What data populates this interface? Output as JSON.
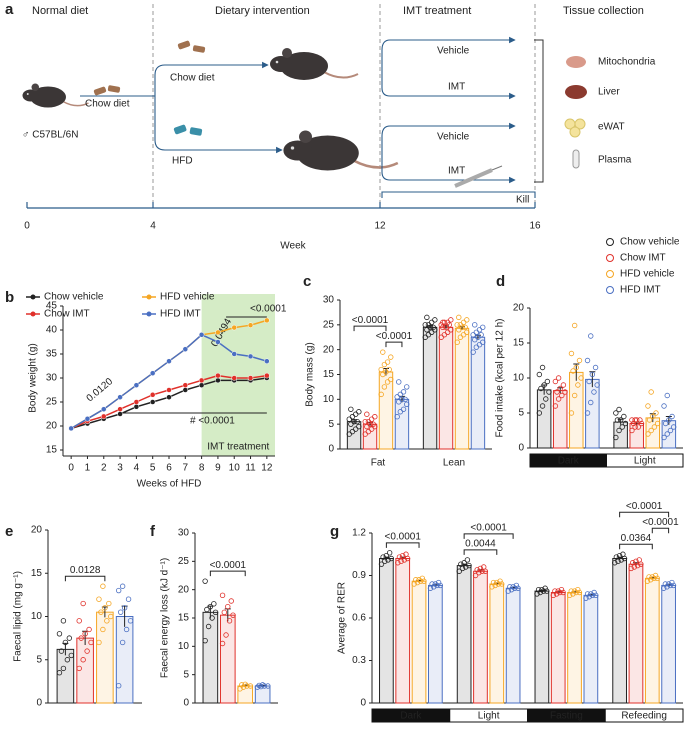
{
  "diagram": {
    "panel": "a",
    "headers": [
      "Normal diet",
      "Dietary intervention",
      "IMT treatment",
      "Tissue collection"
    ],
    "diets": [
      "Chow diet",
      "Chow diet",
      "HFD"
    ],
    "strain": "♂ C57BL/6N",
    "treatments": [
      "Vehicle",
      "IMT",
      "Vehicle",
      "IMT"
    ],
    "tissues": [
      "Mitochondria",
      "Liver",
      "eWAT",
      "Plasma"
    ],
    "kill": "Kill",
    "weeks": [
      "0",
      "4",
      "12",
      "16"
    ],
    "axis_label": "Week"
  },
  "chart_data": [
    {
      "panel": "b",
      "type": "line",
      "x_label": "Weeks of HFD",
      "y_label": "Body weight (g)",
      "x": [
        0,
        1,
        2,
        3,
        4,
        5,
        6,
        7,
        8,
        9,
        10,
        11,
        12
      ],
      "xlim": [
        -0.5,
        12.5
      ],
      "xticks": [
        0,
        1,
        2,
        3,
        4,
        5,
        6,
        7,
        8,
        9,
        10,
        11,
        12
      ],
      "ylim": [
        15,
        45
      ],
      "yticks": [
        15,
        20,
        25,
        30,
        35,
        40,
        45
      ],
      "shade_from": 8,
      "shade_label": "IMT treatment",
      "shade_color": "#d5ecc6",
      "annotations": [
        "0.0120",
        "# <0.0001",
        "0.0494",
        "<0.0001"
      ],
      "series": [
        {
          "name": "Chow vehicle",
          "color": "#222222",
          "values": [
            19.5,
            20.5,
            21.5,
            22.5,
            24,
            25,
            26,
            27.5,
            28.5,
            29.5,
            29.5,
            29.5,
            30
          ]
        },
        {
          "name": "Chow IMT",
          "color": "#e0302a",
          "values": [
            19.5,
            21,
            22,
            23.5,
            25,
            26.5,
            27.5,
            28.5,
            29.5,
            30.5,
            30,
            30,
            30.5
          ]
        },
        {
          "name": "HFD vehicle",
          "color": "#f5a623",
          "values": [
            19.5,
            21.5,
            23.5,
            26,
            28.5,
            31,
            33.5,
            36,
            39,
            39.5,
            40.5,
            41,
            42
          ]
        },
        {
          "name": "HFD IMT",
          "color": "#4a6fc2",
          "values": [
            19.5,
            21.5,
            23.5,
            26,
            28.5,
            31,
            33.5,
            36,
            39,
            37.5,
            35,
            34.5,
            33.5
          ]
        }
      ]
    },
    {
      "panel": "c",
      "type": "bar",
      "y_label": "Body mass (g)",
      "categories": [
        "Fat",
        "Lean"
      ],
      "ylim": [
        0,
        30
      ],
      "yticks": [
        0,
        5,
        10,
        15,
        20,
        25,
        30
      ],
      "series": [
        {
          "color": "#222222",
          "values": [
            5.5,
            24.5
          ],
          "errors": [
            0.4,
            0.3
          ],
          "points": [
            [
              3,
              3.5,
              4,
              4.5,
              5,
              5.5,
              5.5,
              6,
              6.5,
              7,
              7.5,
              8
            ],
            [
              22.5,
              23,
              23.5,
              24,
              24,
              24.5,
              24.5,
              25,
              25,
              25.5,
              26,
              26.5
            ]
          ]
        },
        {
          "color": "#e0302a",
          "values": [
            5,
            24.5
          ],
          "errors": [
            0.35,
            0.3
          ],
          "points": [
            [
              3,
              3.5,
              4,
              4.5,
              4.5,
              5,
              5,
              5.5,
              5.5,
              6,
              6.5,
              7
            ],
            [
              22.5,
              23,
              23.5,
              24,
              24.5,
              24.5,
              25,
              25,
              25.5,
              25.5,
              26,
              25.5
            ]
          ]
        },
        {
          "color": "#f5a623",
          "values": [
            15.5,
            24.3
          ],
          "errors": [
            0.7,
            0.35
          ],
          "points": [
            [
              11,
              12.5,
              13.5,
              14,
              15,
              15.5,
              16,
              16,
              17,
              17.5,
              18.5,
              19.5
            ],
            [
              21.5,
              22.5,
              23,
              23.5,
              24,
              24.5,
              24.5,
              25,
              25,
              25.5,
              26,
              26.5
            ]
          ]
        },
        {
          "color": "#4a6fc2",
          "values": [
            10,
            22.5
          ],
          "errors": [
            0.6,
            0.4
          ],
          "points": [
            [
              6.5,
              7.5,
              8,
              9,
              9.5,
              10,
              10,
              10.5,
              11,
              11.5,
              12.5,
              13.5
            ],
            [
              19.5,
              20.5,
              21,
              21.5,
              22,
              22.5,
              23,
              23,
              23.5,
              24,
              24.5,
              25
            ]
          ]
        }
      ],
      "brackets": [
        {
          "label": "<0.0001",
          "group": 0,
          "from": 2,
          "to": 3
        },
        {
          "label": "<0.0001",
          "group": 0,
          "from": 0,
          "to": 2
        }
      ]
    },
    {
      "panel": "d",
      "type": "bar",
      "y_label": "Food intake (kcal per 12 h)",
      "categories": [
        "Dark",
        "Light"
      ],
      "category_colors": [
        "#111111",
        "#ffffff"
      ],
      "ylim": [
        0,
        20
      ],
      "yticks": [
        0,
        5,
        10,
        15,
        20
      ],
      "series": [
        {
          "name": "Chow vehicle",
          "color": "#222222",
          "values": [
            8.3,
            3.7
          ],
          "errors": [
            0.7,
            0.4
          ],
          "points": [
            [
              5,
              6,
              7,
              8,
              8.5,
              9,
              9.5,
              10.5,
              11.5
            ],
            [
              1.5,
              2.5,
              3,
              3.5,
              4,
              4,
              4.5,
              5,
              5.5
            ]
          ]
        },
        {
          "name": "Chow IMT",
          "color": "#e0302a",
          "values": [
            8.2,
            3.5
          ],
          "errors": [
            0.4,
            0.2
          ],
          "points": [
            [
              6,
              7,
              7.5,
              8,
              8,
              8.5,
              9,
              9.5,
              10
            ],
            [
              2.5,
              3,
              3,
              3.5,
              3.5,
              4,
              4,
              4,
              4
            ]
          ]
        },
        {
          "name": "HFD vehicle",
          "color": "#f5a623",
          "values": [
            10.8,
            4.3
          ],
          "errors": [
            1.2,
            0.6
          ],
          "points": [
            [
              5,
              7.5,
              9,
              10,
              11,
              11.5,
              12.5,
              13.5,
              17.5
            ],
            [
              2,
              2.5,
              3,
              3.5,
              4,
              4.5,
              5,
              6,
              8
            ]
          ]
        },
        {
          "name": "HFD IMT",
          "color": "#4a6fc2",
          "values": [
            9.8,
            3.9
          ],
          "errors": [
            1.1,
            0.6
          ],
          "points": [
            [
              5,
              6.5,
              8,
              9,
              9.5,
              10.5,
              11.5,
              12.5,
              16
            ],
            [
              1.5,
              2,
              2.5,
              3,
              3.5,
              4,
              4.5,
              6,
              7.5
            ]
          ]
        }
      ]
    },
    {
      "panel": "e",
      "type": "bar",
      "y_label": "Faecal lipid (mg g⁻¹)",
      "ylim": [
        0,
        20
      ],
      "yticks": [
        0,
        5,
        10,
        15,
        20
      ],
      "series": [
        {
          "color": "#222222",
          "values": [
            6.2
          ],
          "errors": [
            0.7
          ],
          "points": [
            [
              3.5,
              4,
              5,
              5.5,
              6,
              7,
              7.5,
              8,
              9.5
            ]
          ]
        },
        {
          "color": "#e0302a",
          "values": [
            7.5
          ],
          "errors": [
            0.8
          ],
          "points": [
            [
              4,
              5,
              6,
              7,
              7.5,
              8,
              8.5,
              9.5,
              11.5
            ]
          ]
        },
        {
          "color": "#f5a623",
          "values": [
            10.5
          ],
          "errors": [
            0.6
          ],
          "points": [
            [
              7,
              8.5,
              9.5,
              10,
              10.5,
              11,
              11.5,
              12,
              13.5
            ]
          ]
        },
        {
          "color": "#4a6fc2",
          "values": [
            10
          ],
          "errors": [
            1.2
          ],
          "points": [
            [
              2,
              7,
              8.5,
              9.5,
              10.5,
              11,
              12,
              13,
              13.5
            ]
          ]
        }
      ],
      "brackets": [
        {
          "label": "0.0128",
          "group": 0,
          "from": 0,
          "to": 2
        }
      ]
    },
    {
      "panel": "f",
      "type": "bar",
      "y_label": "Faecal energy loss (kJ d⁻¹)",
      "ylim": [
        0,
        30
      ],
      "yticks": [
        0,
        5,
        10,
        15,
        20,
        25,
        30
      ],
      "series": [
        {
          "color": "#222222",
          "values": [
            16
          ],
          "errors": [
            1.1
          ],
          "points": [
            [
              11,
              13.5,
              15,
              16,
              16.5,
              17,
              17.5,
              21.5
            ]
          ]
        },
        {
          "color": "#e0302a",
          "values": [
            15.5
          ],
          "errors": [
            1.1
          ],
          "points": [
            [
              10.5,
              12,
              14.5,
              15.5,
              16,
              17,
              18,
              19
            ]
          ]
        },
        {
          "color": "#f5a623",
          "values": [
            3
          ],
          "errors": [
            0.15
          ],
          "points": [
            [
              2.5,
              2.8,
              3,
              3,
              3.2,
              3.3
            ]
          ]
        },
        {
          "color": "#4a6fc2",
          "values": [
            3
          ],
          "errors": [
            0.1
          ],
          "points": [
            [
              2.8,
              2.9,
              3,
              3,
              3.1,
              3.2
            ]
          ]
        }
      ],
      "brackets": [
        {
          "label": "<0.0001",
          "group": 0,
          "from": 0,
          "to": 2
        }
      ]
    },
    {
      "panel": "g",
      "type": "bar",
      "y_label": "Average of RER",
      "categories": [
        "Dark",
        "Light",
        "Fasting",
        "Refeeding"
      ],
      "category_colors": [
        "#111111",
        "#ffffff",
        "#111111",
        "#ffffff"
      ],
      "ylim": [
        0,
        1.2
      ],
      "yticks": [
        0,
        0.3,
        0.6,
        0.9,
        1.2
      ],
      "series": [
        {
          "color": "#222222",
          "values": [
            1.02,
            0.97,
            0.79,
            1.02
          ],
          "errors": [
            0.01,
            0.01,
            0.005,
            0.01
          ],
          "points": [
            [
              0.98,
              1,
              1.01,
              1.02,
              1.03,
              1.04,
              1.06
            ],
            [
              0.93,
              0.95,
              0.96,
              0.97,
              0.98,
              0.99,
              1.01
            ],
            [
              0.77,
              0.78,
              0.79,
              0.79,
              0.8,
              0.8,
              0.81
            ],
            [
              0.99,
              1,
              1.01,
              1.02,
              1.03,
              1.04,
              1.05
            ]
          ]
        },
        {
          "color": "#e0302a",
          "values": [
            1.02,
            0.93,
            0.78,
            0.98
          ],
          "errors": [
            0.01,
            0.01,
            0.005,
            0.01
          ],
          "points": [
            [
              0.99,
              1,
              1.01,
              1.02,
              1.03,
              1.04,
              1.05
            ],
            [
              0.9,
              0.92,
              0.93,
              0.93,
              0.94,
              0.95,
              0.96
            ],
            [
              0.76,
              0.77,
              0.78,
              0.78,
              0.79,
              0.79,
              0.8
            ],
            [
              0.95,
              0.96,
              0.97,
              0.98,
              0.99,
              1,
              1.01
            ]
          ]
        },
        {
          "color": "#f5a623",
          "values": [
            0.86,
            0.84,
            0.78,
            0.88
          ],
          "errors": [
            0.005,
            0.005,
            0.005,
            0.005
          ],
          "points": [
            [
              0.84,
              0.85,
              0.86,
              0.86,
              0.87,
              0.87,
              0.88
            ],
            [
              0.82,
              0.83,
              0.84,
              0.84,
              0.85,
              0.85,
              0.86
            ],
            [
              0.76,
              0.77,
              0.78,
              0.78,
              0.79,
              0.79,
              0.8
            ],
            [
              0.86,
              0.87,
              0.88,
              0.88,
              0.89,
              0.89,
              0.9
            ]
          ]
        },
        {
          "color": "#4a6fc2",
          "values": [
            0.83,
            0.81,
            0.76,
            0.83
          ],
          "errors": [
            0.005,
            0.005,
            0.005,
            0.005
          ],
          "points": [
            [
              0.81,
              0.82,
              0.83,
              0.83,
              0.84,
              0.84,
              0.85
            ],
            [
              0.79,
              0.8,
              0.81,
              0.81,
              0.82,
              0.82,
              0.83
            ],
            [
              0.74,
              0.75,
              0.76,
              0.76,
              0.77,
              0.77,
              0.78
            ],
            [
              0.81,
              0.82,
              0.83,
              0.83,
              0.84,
              0.84,
              0.85
            ]
          ]
        }
      ],
      "brackets": [
        {
          "label": "<0.0001",
          "group": 0,
          "from": 0,
          "to": 2
        },
        {
          "label": "0.0044",
          "group": 1,
          "from": 0,
          "to": 2
        },
        {
          "label": "<0.0001",
          "group": 1,
          "from": 0,
          "to": 3
        },
        {
          "label": "0.0364",
          "group": 3,
          "from": 0,
          "to": 2
        },
        {
          "label": "<0.0001",
          "group": 3,
          "from": 2,
          "to": 3
        },
        {
          "label": "<0.0001",
          "group": 3,
          "from": 0,
          "to": 3
        }
      ]
    }
  ]
}
